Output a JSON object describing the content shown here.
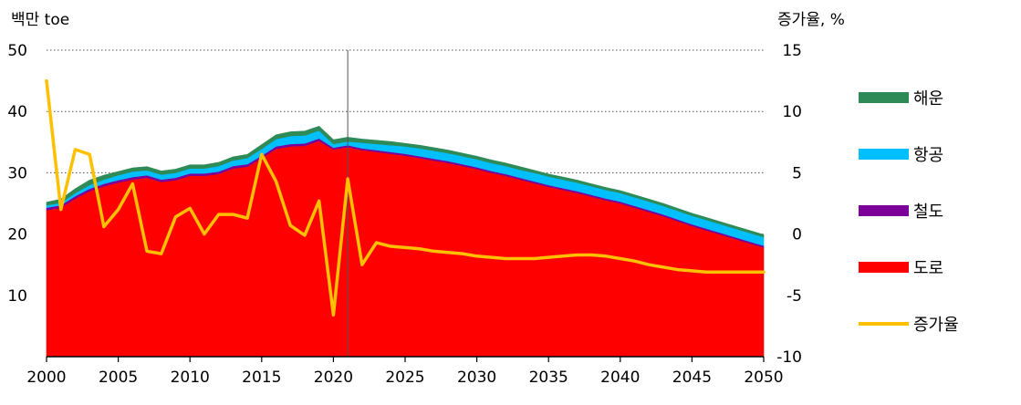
{
  "chart_data": {
    "type": "area",
    "left_axis": {
      "label": "백만 toe",
      "ylim": [
        0,
        50
      ],
      "ticks": [
        10,
        20,
        30,
        40,
        50
      ]
    },
    "right_axis": {
      "label": "증가율, %",
      "ylim": [
        -10,
        15
      ],
      "ticks": [
        15,
        10,
        5,
        0,
        -5,
        -10
      ]
    },
    "x_ticks": [
      2000,
      2005,
      2010,
      2015,
      2020,
      2025,
      2030,
      2035,
      2040,
      2045,
      2050
    ],
    "xlim": [
      2000,
      2050
    ],
    "forecast_start": 2021,
    "grid": true,
    "legend_position": "right",
    "x": [
      2000,
      2001,
      2002,
      2003,
      2004,
      2005,
      2006,
      2007,
      2008,
      2009,
      2010,
      2011,
      2012,
      2013,
      2014,
      2015,
      2016,
      2017,
      2018,
      2019,
      2020,
      2021,
      2022,
      2023,
      2024,
      2025,
      2026,
      2027,
      2028,
      2029,
      2030,
      2031,
      2032,
      2033,
      2034,
      2035,
      2036,
      2037,
      2038,
      2039,
      2040,
      2041,
      2042,
      2043,
      2044,
      2045,
      2046,
      2047,
      2048,
      2049,
      2050
    ],
    "series": [
      {
        "name": "도로",
        "kind": "stacked-area",
        "color": "#ff0000",
        "values": [
          23.9,
          24.3,
          25.8,
          27.0,
          27.8,
          28.4,
          28.9,
          29.2,
          28.5,
          28.8,
          29.5,
          29.5,
          29.8,
          30.7,
          31.0,
          32.4,
          33.9,
          34.3,
          34.4,
          35.2,
          33.8,
          34.2,
          33.7,
          33.4,
          33.1,
          32.8,
          32.4,
          32.0,
          31.6,
          31.1,
          30.6,
          30.0,
          29.5,
          28.9,
          28.3,
          27.7,
          27.2,
          26.7,
          26.1,
          25.5,
          25.0,
          24.3,
          23.6,
          22.9,
          22.1,
          21.3,
          20.6,
          19.9,
          19.2,
          18.5,
          17.8
        ]
      },
      {
        "name": "철도",
        "kind": "stacked-area",
        "color": "#7b0099",
        "values": [
          0.4,
          0.4,
          0.4,
          0.4,
          0.4,
          0.4,
          0.4,
          0.4,
          0.4,
          0.4,
          0.4,
          0.4,
          0.4,
          0.4,
          0.4,
          0.4,
          0.4,
          0.4,
          0.4,
          0.4,
          0.3,
          0.3,
          0.3,
          0.3,
          0.3,
          0.3,
          0.3,
          0.3,
          0.3,
          0.3,
          0.3,
          0.3,
          0.3,
          0.3,
          0.3,
          0.3,
          0.3,
          0.3,
          0.3,
          0.3,
          0.3,
          0.3,
          0.3,
          0.3,
          0.3,
          0.3,
          0.3,
          0.3,
          0.3,
          0.3,
          0.3
        ]
      },
      {
        "name": "항공",
        "kind": "stacked-area",
        "color": "#00bfff",
        "values": [
          0.4,
          0.4,
          0.5,
          0.6,
          0.7,
          0.8,
          0.9,
          0.8,
          0.8,
          0.8,
          0.8,
          0.8,
          0.9,
          0.9,
          1.0,
          1.1,
          1.2,
          1.3,
          1.3,
          1.3,
          0.6,
          0.6,
          0.9,
          1.0,
          1.1,
          1.2,
          1.3,
          1.3,
          1.3,
          1.3,
          1.3,
          1.3,
          1.3,
          1.3,
          1.4,
          1.4,
          1.4,
          1.4,
          1.4,
          1.4,
          1.4,
          1.4,
          1.4,
          1.4,
          1.4,
          1.4,
          1.4,
          1.4,
          1.4,
          1.4,
          1.4
        ]
      },
      {
        "name": "해운",
        "kind": "stacked-area",
        "color": "#2e8b57",
        "values": [
          0.5,
          0.6,
          0.7,
          0.8,
          0.7,
          0.6,
          0.6,
          0.6,
          0.6,
          0.6,
          0.6,
          0.6,
          0.6,
          0.6,
          0.6,
          0.7,
          0.7,
          0.7,
          0.7,
          0.7,
          0.7,
          0.7,
          0.6,
          0.6,
          0.6,
          0.5,
          0.5,
          0.5,
          0.5,
          0.5,
          0.5,
          0.5,
          0.5,
          0.5,
          0.4,
          0.4,
          0.4,
          0.4,
          0.4,
          0.4,
          0.4,
          0.4,
          0.4,
          0.4,
          0.4,
          0.4,
          0.4,
          0.4,
          0.4,
          0.4,
          0.4
        ]
      },
      {
        "name": "증가율",
        "kind": "line",
        "axis": "right",
        "color": "#ffc000",
        "values": [
          12.5,
          2.0,
          6.9,
          6.5,
          0.6,
          2.0,
          4.1,
          -1.4,
          -1.6,
          1.4,
          2.1,
          0.0,
          1.6,
          1.6,
          1.3,
          6.5,
          4.3,
          0.7,
          -0.1,
          2.7,
          -6.6,
          4.5,
          -2.5,
          -0.7,
          -1.0,
          -1.1,
          -1.2,
          -1.4,
          -1.5,
          -1.6,
          -1.8,
          -1.9,
          -2.0,
          -2.0,
          -2.0,
          -1.9,
          -1.8,
          -1.7,
          -1.7,
          -1.8,
          -2.0,
          -2.2,
          -2.5,
          -2.7,
          -2.9,
          -3.0,
          -3.1,
          -3.1,
          -3.1,
          -3.1,
          -3.1
        ]
      }
    ],
    "legend_order": [
      "해운",
      "항공",
      "철도",
      "도로",
      "증가율"
    ]
  }
}
